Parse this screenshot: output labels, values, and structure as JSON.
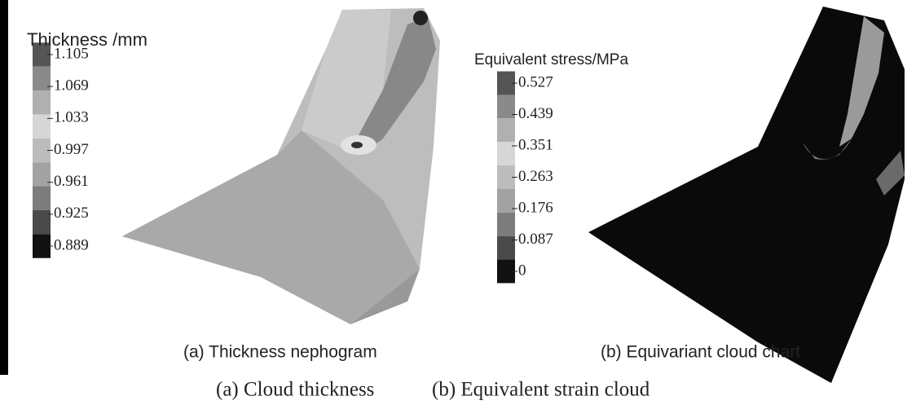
{
  "panels": [
    {
      "legend_title": "Thickness /mm",
      "legend_labels": [
        "1.105",
        "1.069",
        "1.033",
        "0.997",
        "0.961",
        "0.925",
        "0.889"
      ],
      "subcaption": "(a) Thickness nephogram",
      "caption": "(a) Cloud thickness"
    },
    {
      "legend_title": "Equivalent stress/MPa",
      "legend_labels": [
        "0.527",
        "0.439",
        "0.351",
        "0.263",
        "0.176",
        "0.087",
        "0"
      ],
      "subcaption": "(b) Equivariant cloud chart",
      "caption": "(b) Equivalent strain cloud"
    }
  ]
}
